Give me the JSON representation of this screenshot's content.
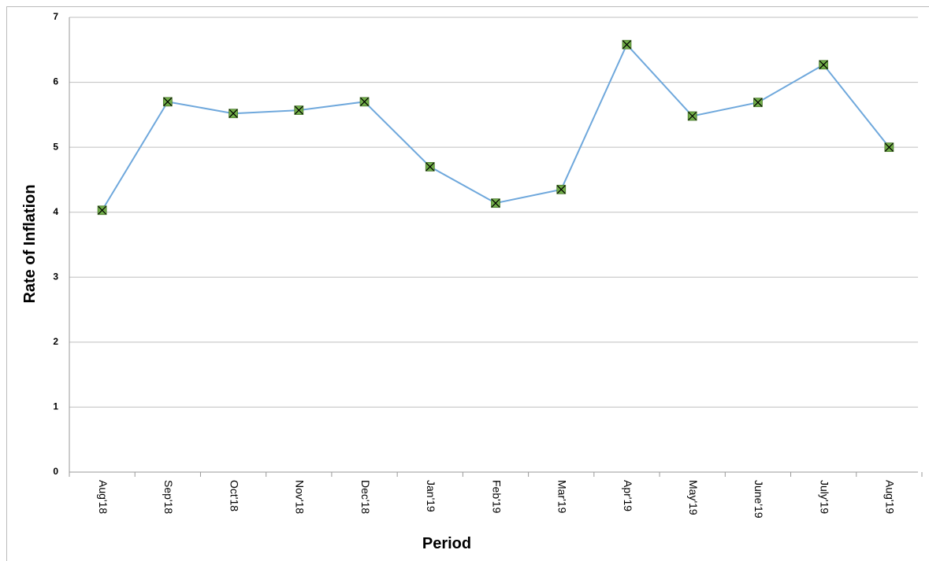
{
  "chart_data": {
    "type": "line",
    "x_label": "Period",
    "y_label": "Rate of Inflation",
    "categories": [
      "Aug'18",
      "Sep'18",
      "Oct'18",
      "Nov'18",
      "Dec'18",
      "Jan'19",
      "Feb'19",
      "Mar'19",
      "Apr'19",
      "May'19",
      "June'19",
      "July'19",
      "Aug'19"
    ],
    "series": [
      {
        "color": "#6fa8dc",
        "marker_color": "#70ad47",
        "values": [
          4.03,
          5.7,
          5.52,
          5.57,
          5.7,
          4.7,
          4.14,
          4.35,
          6.58,
          5.48,
          5.69,
          6.27,
          5.0
        ]
      }
    ],
    "ylim": [
      0,
      7
    ],
    "yticks": [
      0,
      1,
      2,
      3,
      4,
      5,
      6,
      7
    ],
    "grid": true
  }
}
